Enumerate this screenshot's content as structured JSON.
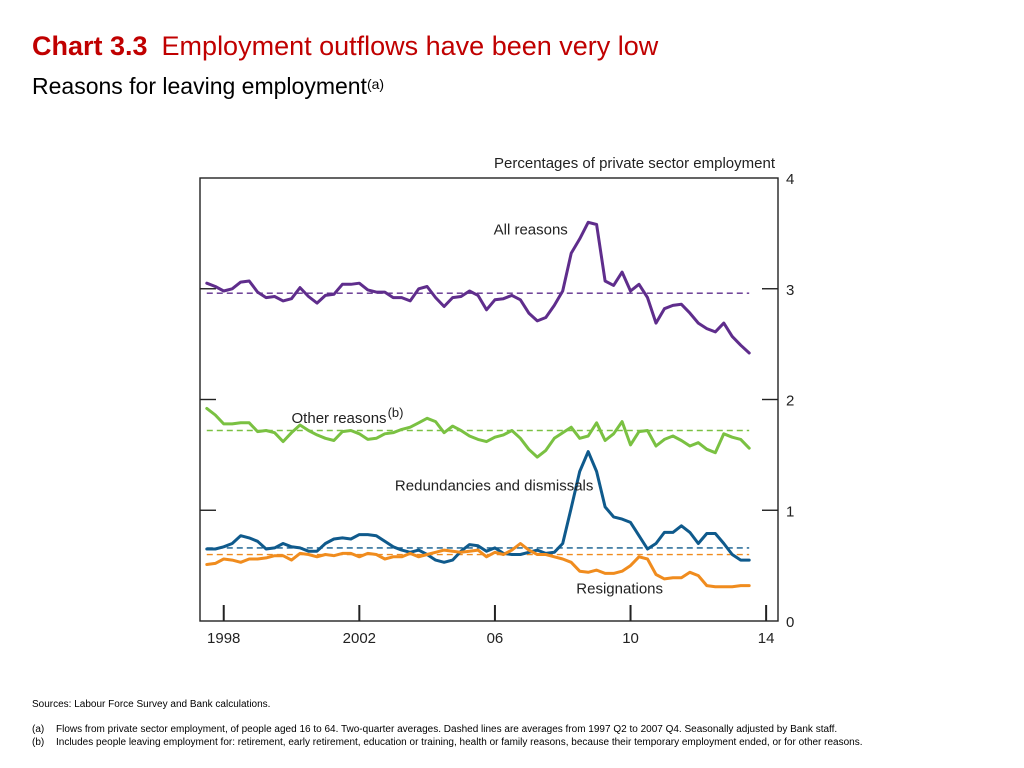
{
  "header": {
    "chart_number": "Chart 3.3",
    "title": "Employment outflows have been very low",
    "subtitle": "Reasons for leaving employment",
    "subtitle_superscript": "(a)"
  },
  "footer": {
    "sources": "Sources:  Labour Force Survey and Bank calculations.",
    "note_a_mark": "(a)",
    "note_a": "Flows from private sector employment, of people aged 16 to 64.  Two-quarter averages.  Dashed lines are averages from 1997 Q2 to 2007 Q4.  Seasonally adjusted by Bank staff.",
    "note_b_mark": "(b)",
    "note_b": "Includes people leaving employment for:  retirement, early retirement, education or training, health or family reasons, because their temporary employment ended, or for other reasons."
  },
  "chart_data": {
    "type": "line",
    "unit_label": "Percentages of private sector employment",
    "x_start": 1997.5,
    "x_step": 0.25,
    "xlim": [
      1997.3,
      2014.35
    ],
    "ylim": [
      0,
      4
    ],
    "x_ticks": [
      {
        "value": 1998,
        "label": "1998"
      },
      {
        "value": 2002,
        "label": "2002"
      },
      {
        "value": 2006,
        "label": "06"
      },
      {
        "value": 2010,
        "label": "10"
      },
      {
        "value": 2014,
        "label": "14"
      }
    ],
    "y_ticks": [
      0,
      1,
      2,
      3,
      4
    ],
    "series": [
      {
        "name": "All reasons",
        "color": "#5f2d8c",
        "average": 2.96,
        "values": [
          3.05,
          3.02,
          2.98,
          3.0,
          3.06,
          3.07,
          2.97,
          2.92,
          2.93,
          2.89,
          2.91,
          3.01,
          2.93,
          2.87,
          2.94,
          2.95,
          3.04,
          3.04,
          3.05,
          2.99,
          2.97,
          2.97,
          2.92,
          2.92,
          2.89,
          3.0,
          3.02,
          2.92,
          2.84,
          2.92,
          2.93,
          2.98,
          2.94,
          2.81,
          2.9,
          2.91,
          2.94,
          2.9,
          2.78,
          2.71,
          2.74,
          2.85,
          2.98,
          3.32,
          3.45,
          3.6,
          3.58,
          3.07,
          3.03,
          3.15,
          2.98,
          3.04,
          2.92,
          2.69,
          2.82,
          2.85,
          2.86,
          2.78,
          2.69,
          2.64,
          2.61,
          2.69,
          2.57,
          2.49,
          2.42
        ]
      },
      {
        "name": "Other reasons",
        "superscript": "(b)",
        "color": "#7ac142",
        "average": 1.72,
        "values": [
          1.92,
          1.86,
          1.78,
          1.78,
          1.79,
          1.79,
          1.71,
          1.72,
          1.7,
          1.62,
          1.7,
          1.77,
          1.72,
          1.68,
          1.65,
          1.63,
          1.71,
          1.72,
          1.69,
          1.64,
          1.65,
          1.69,
          1.7,
          1.73,
          1.75,
          1.79,
          1.83,
          1.8,
          1.7,
          1.76,
          1.72,
          1.67,
          1.64,
          1.62,
          1.66,
          1.68,
          1.72,
          1.65,
          1.55,
          1.48,
          1.54,
          1.65,
          1.7,
          1.75,
          1.65,
          1.67,
          1.79,
          1.63,
          1.69,
          1.8,
          1.59,
          1.71,
          1.72,
          1.58,
          1.64,
          1.67,
          1.63,
          1.58,
          1.61,
          1.55,
          1.52,
          1.69,
          1.66,
          1.64,
          1.56
        ]
      },
      {
        "name": "Redundancies and dismissals",
        "color": "#0f5a8c",
        "average": 0.66,
        "values": [
          0.65,
          0.65,
          0.67,
          0.7,
          0.77,
          0.75,
          0.72,
          0.65,
          0.66,
          0.7,
          0.67,
          0.66,
          0.63,
          0.63,
          0.7,
          0.74,
          0.75,
          0.74,
          0.78,
          0.78,
          0.77,
          0.72,
          0.67,
          0.64,
          0.62,
          0.64,
          0.6,
          0.55,
          0.53,
          0.55,
          0.63,
          0.69,
          0.68,
          0.63,
          0.66,
          0.61,
          0.6,
          0.6,
          0.62,
          0.64,
          0.61,
          0.62,
          0.7,
          1.02,
          1.35,
          1.53,
          1.35,
          1.03,
          0.94,
          0.92,
          0.89,
          0.77,
          0.65,
          0.7,
          0.8,
          0.8,
          0.86,
          0.8,
          0.7,
          0.79,
          0.79,
          0.7,
          0.6,
          0.55,
          0.55
        ]
      },
      {
        "name": "Resignations",
        "color": "#f08c1e",
        "average": 0.6,
        "values": [
          0.51,
          0.52,
          0.56,
          0.55,
          0.53,
          0.56,
          0.56,
          0.57,
          0.59,
          0.59,
          0.55,
          0.61,
          0.6,
          0.58,
          0.6,
          0.59,
          0.61,
          0.61,
          0.58,
          0.61,
          0.6,
          0.56,
          0.58,
          0.58,
          0.61,
          0.58,
          0.6,
          0.62,
          0.64,
          0.63,
          0.62,
          0.63,
          0.64,
          0.58,
          0.62,
          0.6,
          0.64,
          0.7,
          0.64,
          0.6,
          0.6,
          0.58,
          0.56,
          0.53,
          0.45,
          0.44,
          0.46,
          0.43,
          0.43,
          0.45,
          0.5,
          0.58,
          0.56,
          0.42,
          0.38,
          0.39,
          0.39,
          0.44,
          0.41,
          0.32,
          0.31,
          0.31,
          0.31,
          0.32,
          0.32
        ]
      }
    ]
  }
}
